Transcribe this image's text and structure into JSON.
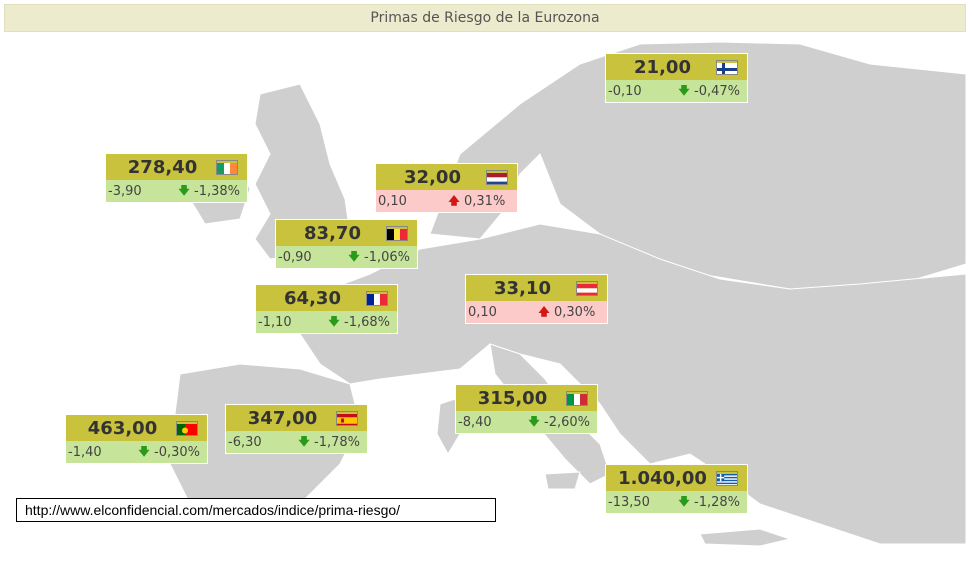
{
  "title": "Primas de Riesgo de la Eurozona",
  "source_url": "http://www.elconfidencial.com/mercados/indice/prima-riesgo/",
  "colors": {
    "value_bar": "#c8c23c",
    "down_bg": "#c6e59b",
    "up_bg": "#fdcaca",
    "down_arrow": "#2a9a1a",
    "up_arrow": "#d01818",
    "map_land": "#cfcfcf"
  },
  "countries": {
    "finland": {
      "value": "21,00",
      "change": "-0,10",
      "pct": "-0,47%",
      "direction": "down",
      "flag": "finland-flag-icon"
    },
    "ireland": {
      "value": "278,40",
      "change": "-3,90",
      "pct": "-1,38%",
      "direction": "down",
      "flag": "ireland-flag-icon"
    },
    "netherlands": {
      "value": "32,00",
      "change": "0,10",
      "pct": "0,31%",
      "direction": "up",
      "flag": "netherlands-flag-icon"
    },
    "belgium": {
      "value": "83,70",
      "change": "-0,90",
      "pct": "-1,06%",
      "direction": "down",
      "flag": "belgium-flag-icon"
    },
    "france": {
      "value": "64,30",
      "change": "-1,10",
      "pct": "-1,68%",
      "direction": "down",
      "flag": "france-flag-icon"
    },
    "austria": {
      "value": "33,10",
      "change": "0,10",
      "pct": "0,30%",
      "direction": "up",
      "flag": "austria-flag-icon"
    },
    "italy": {
      "value": "315,00",
      "change": "-8,40",
      "pct": "-2,60%",
      "direction": "down",
      "flag": "italy-flag-icon"
    },
    "spain": {
      "value": "347,00",
      "change": "-6,30",
      "pct": "-1,78%",
      "direction": "down",
      "flag": "spain-flag-icon"
    },
    "portugal": {
      "value": "463,00",
      "change": "-1,40",
      "pct": "-0,30%",
      "direction": "down",
      "flag": "portugal-flag-icon"
    },
    "greece": {
      "value": "1.040,00",
      "change": "-13,50",
      "pct": "-1,28%",
      "direction": "down",
      "flag": "greece-flag-icon"
    }
  }
}
